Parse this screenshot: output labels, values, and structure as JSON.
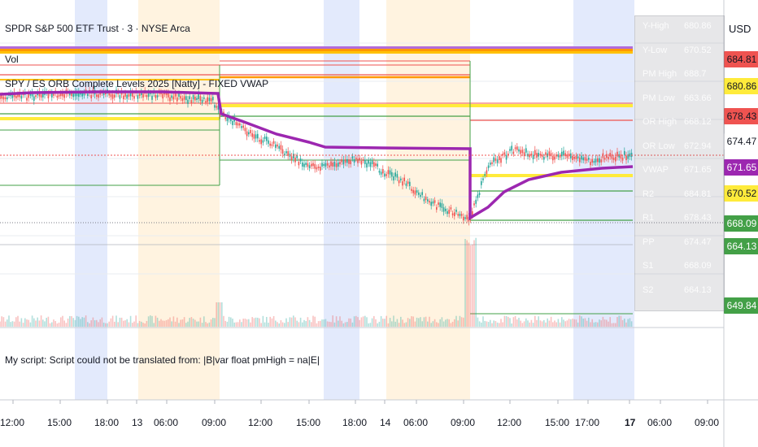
{
  "header": {
    "symbol_title": "SPDR S&P 500 ETF Trust · 3 · NYSE Arca",
    "volume_label": "Vol",
    "indicator_title": "SPY / ES ORB Complete Levels 2025 [Natty] - FIXED VWAP"
  },
  "price_scale": {
    "currency": "USD",
    "tags": [
      {
        "value": "684.81",
        "bg": "#ef5350",
        "fg": "#131722"
      },
      {
        "value": "680.86",
        "bg": "#ffeb3b",
        "fg": "#131722"
      },
      {
        "value": "678.43",
        "bg": "#ef5350",
        "fg": "#131722"
      },
      {
        "value": "674.47",
        "bg": "#ffffff",
        "fg": "#131722"
      },
      {
        "value": "671.65",
        "bg": "#9c27b0",
        "fg": "#ffffff"
      },
      {
        "value": "670.52",
        "bg": "#ffeb3b",
        "fg": "#131722"
      },
      {
        "value": "668.09",
        "bg": "#43a047",
        "fg": "#ffffff"
      },
      {
        "value": "664.13",
        "bg": "#43a047",
        "fg": "#ffffff"
      },
      {
        "value": "649.84",
        "bg": "#43a047",
        "fg": "#ffffff"
      }
    ]
  },
  "info_table": [
    {
      "label": "Y-High",
      "value": "680.86"
    },
    {
      "label": "Y-Low",
      "value": "670.52"
    },
    {
      "label": "PM High",
      "value": "688.7"
    },
    {
      "label": "PM Low",
      "value": "663.66"
    },
    {
      "label": "OR High",
      "value": "668.12"
    },
    {
      "label": "OR Low",
      "value": "672.94"
    },
    {
      "label": "VWAP",
      "value": "671.65"
    },
    {
      "label": "R2",
      "value": "684.81"
    },
    {
      "label": "R1",
      "value": "678.43"
    },
    {
      "label": "PP",
      "value": "674.47"
    },
    {
      "label": "S1",
      "value": "668.09"
    },
    {
      "label": "S2",
      "value": "664.13"
    }
  ],
  "status_message": "My script: Script could not be translated from: |B|var float pmHigh = na|E|",
  "time_axis": {
    "labels": [
      "12:00",
      "15:00",
      "18:00",
      "13",
      "06:00",
      "09:00",
      "12:00",
      "15:00",
      "18:00",
      "14",
      "06:00",
      "09:00",
      "12:00",
      "15:00",
      "17:00",
      "17",
      "06:00",
      "09:00"
    ],
    "current": "17"
  },
  "colors": {
    "vwap": "#9c27b0",
    "resistance": "#ef5350",
    "yesterday": "#ffeb3b",
    "support": "#43a047",
    "premarket_band": "#fff3e0",
    "afterhours_band": "#e3eafc",
    "candle_up": "#26a69a",
    "candle_down": "#ef5350"
  }
}
